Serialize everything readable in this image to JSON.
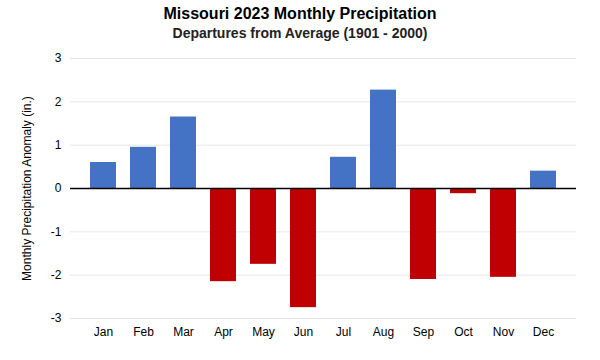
{
  "chart_data": {
    "type": "bar",
    "title": "Missouri 2023 Monthly Precipitation",
    "subtitle": "Departures from Average (1901 - 2000)",
    "categories": [
      "Jan",
      "Feb",
      "Mar",
      "Apr",
      "May",
      "Jun",
      "Jul",
      "Aug",
      "Sep",
      "Oct",
      "Nov",
      "Dec"
    ],
    "values": [
      0.6,
      0.95,
      1.65,
      -2.15,
      -1.75,
      -2.75,
      0.72,
      2.27,
      -2.1,
      -0.12,
      -2.05,
      0.4
    ],
    "colors": [
      "#4472C4",
      "#4472C4",
      "#4472C4",
      "#C00000",
      "#C00000",
      "#C00000",
      "#4472C4",
      "#4472C4",
      "#C00000",
      "#C00000",
      "#C00000",
      "#4472C4"
    ],
    "ylabel": "Monthly Precipitation Anomaly (in.)",
    "ylim": [
      -3,
      3
    ],
    "yticks": [
      -3,
      -2,
      -1,
      0,
      1,
      2,
      3
    ],
    "grid": true
  }
}
